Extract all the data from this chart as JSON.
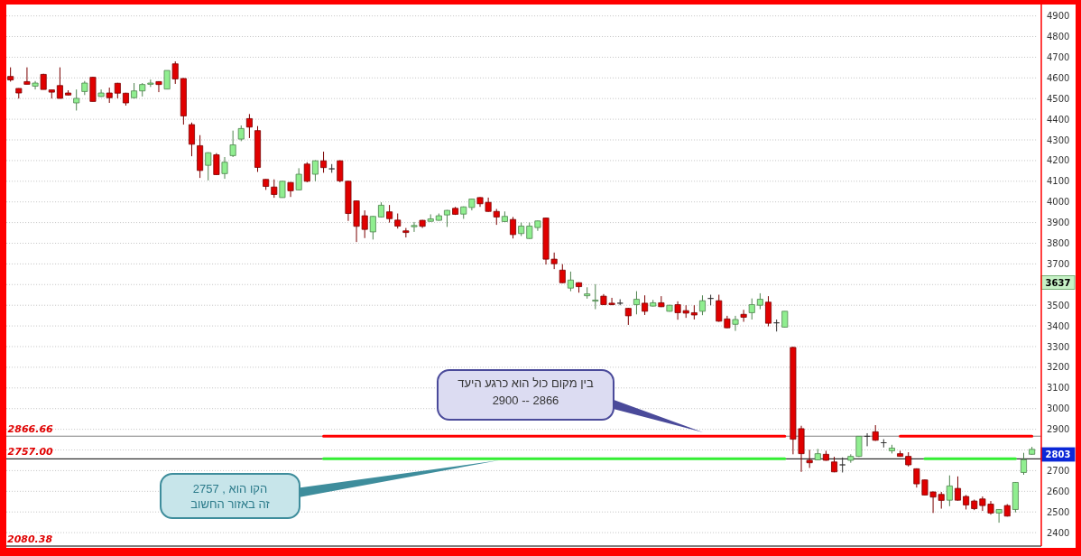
{
  "chart_data": {
    "type": "candlestick",
    "categories": [
      null,
      null,
      null,
      null,
      null,
      null,
      null,
      null,
      null,
      null,
      null,
      null,
      null,
      null,
      null,
      null,
      null,
      null,
      null,
      null,
      null,
      null,
      null,
      null,
      null,
      null,
      null,
      null,
      null,
      null,
      null,
      null,
      null,
      null,
      null,
      null,
      null,
      null,
      null,
      null,
      null,
      null,
      null,
      null,
      null,
      null,
      null,
      null,
      null,
      null,
      null,
      null,
      null,
      null,
      null,
      null,
      null,
      null,
      null,
      null,
      null,
      null,
      null,
      null,
      null,
      null,
      null,
      null,
      null,
      null,
      null,
      null,
      null,
      null,
      null,
      null,
      null,
      null,
      null,
      null,
      null,
      null,
      null,
      null,
      null,
      null,
      null,
      null,
      null,
      null,
      null,
      null,
      null,
      null,
      null,
      null,
      null,
      null,
      null,
      null,
      null,
      null,
      null,
      null,
      null,
      null,
      null,
      null,
      null,
      null,
      null,
      null,
      null,
      null,
      null,
      null,
      null,
      null,
      null,
      null,
      null,
      null,
      null,
      null,
      null
    ],
    "ohlc": [
      [
        4607,
        4651,
        4582,
        4590
      ],
      [
        4549,
        4550,
        4500,
        4527
      ],
      [
        4582,
        4651,
        4569,
        4569
      ],
      [
        4560,
        4585,
        4544,
        4575
      ],
      [
        4617,
        4620,
        4544,
        4544
      ],
      [
        4542,
        4542,
        4500,
        4531
      ],
      [
        4563,
        4651,
        4500,
        4501
      ],
      [
        4527,
        4540,
        4515,
        4517
      ],
      [
        4479,
        4544,
        4442,
        4501
      ],
      [
        4534,
        4585,
        4517,
        4575
      ],
      [
        4603,
        4605,
        4486,
        4486
      ],
      [
        4510,
        4544,
        4508,
        4527
      ],
      [
        4527,
        4553,
        4479,
        4504
      ],
      [
        4574,
        4576,
        4501,
        4526
      ],
      [
        4526,
        4528,
        4466,
        4479
      ],
      [
        4504,
        4575,
        4500,
        4537
      ],
      [
        4537,
        4575,
        4510,
        4568
      ],
      [
        4569,
        4592,
        4556,
        4575
      ],
      [
        4582,
        4584,
        4531,
        4568
      ],
      [
        4546,
        4636,
        4546,
        4636
      ],
      [
        4668,
        4680,
        4571,
        4595
      ],
      [
        4597,
        4599,
        4374,
        4416
      ],
      [
        4374,
        4384,
        4221,
        4279
      ],
      [
        4272,
        4323,
        4116,
        4152
      ],
      [
        4177,
        4240,
        4104,
        4238
      ],
      [
        4228,
        4236,
        4130,
        4132
      ],
      [
        4137,
        4217,
        4112,
        4192
      ],
      [
        4224,
        4345,
        4217,
        4276
      ],
      [
        4304,
        4370,
        4294,
        4355
      ],
      [
        4403,
        4425,
        4309,
        4362
      ],
      [
        4345,
        4367,
        4145,
        4167
      ],
      [
        4109,
        4110,
        4058,
        4075
      ],
      [
        4072,
        4109,
        4020,
        4036
      ],
      [
        4021,
        4102,
        4020,
        4100
      ],
      [
        4094,
        4096,
        4024,
        4054
      ],
      [
        4058,
        4163,
        4056,
        4134
      ],
      [
        4183,
        4192,
        4095,
        4100
      ],
      [
        4134,
        4201,
        4100,
        4199
      ],
      [
        4199,
        4243,
        4141,
        4166
      ],
      [
        4160,
        4183,
        4141,
        4160
      ],
      [
        4199,
        4201,
        4095,
        4102
      ],
      [
        4100,
        4102,
        3908,
        3944
      ],
      [
        4005,
        4007,
        3806,
        3882
      ],
      [
        3933,
        3959,
        3825,
        3867
      ],
      [
        3855,
        3932,
        3818,
        3930
      ],
      [
        3927,
        3998,
        3925,
        3984
      ],
      [
        3952,
        3985,
        3900,
        3919
      ],
      [
        3912,
        3944,
        3871,
        3883
      ],
      [
        3860,
        3874,
        3828,
        3852
      ],
      [
        3880,
        3903,
        3855,
        3886
      ],
      [
        3911,
        3913,
        3874,
        3882
      ],
      [
        3906,
        3940,
        3904,
        3918
      ],
      [
        3911,
        3944,
        3909,
        3933
      ],
      [
        3937,
        3961,
        3879,
        3959
      ],
      [
        3969,
        3976,
        3937,
        3940
      ],
      [
        3941,
        3978,
        3918,
        3976
      ],
      [
        3973,
        4016,
        3959,
        4014
      ],
      [
        4021,
        4023,
        3976,
        3991
      ],
      [
        3998,
        4021,
        3952,
        3954
      ],
      [
        3954,
        3966,
        3889,
        3927
      ],
      [
        3905,
        3954,
        3903,
        3930
      ],
      [
        3915,
        3927,
        3823,
        3842
      ],
      [
        3847,
        3900,
        3835,
        3883
      ],
      [
        3823,
        3900,
        3821,
        3883
      ],
      [
        3876,
        3910,
        3860,
        3908
      ],
      [
        3922,
        3924,
        3697,
        3723
      ],
      [
        3723,
        3755,
        3675,
        3701
      ],
      [
        3670,
        3699,
        3607,
        3609
      ],
      [
        3583,
        3663,
        3568,
        3622
      ],
      [
        3609,
        3611,
        3561,
        3590
      ],
      [
        3546,
        3587,
        3532,
        3555
      ],
      [
        3520,
        3602,
        3481,
        3525
      ],
      [
        3544,
        3554,
        3501,
        3503
      ],
      [
        3510,
        3536,
        3500,
        3503
      ],
      [
        3510,
        3529,
        3500,
        3510
      ],
      [
        3485,
        3487,
        3405,
        3449
      ],
      [
        3503,
        3568,
        3456,
        3529
      ],
      [
        3510,
        3548,
        3453,
        3471
      ],
      [
        3496,
        3526,
        3494,
        3512
      ],
      [
        3512,
        3544,
        3491,
        3493
      ],
      [
        3471,
        3502,
        3469,
        3500
      ],
      [
        3503,
        3519,
        3430,
        3464
      ],
      [
        3474,
        3500,
        3439,
        3462
      ],
      [
        3464,
        3500,
        3431,
        3453
      ],
      [
        3471,
        3548,
        3452,
        3522
      ],
      [
        3533,
        3551,
        3500,
        3533
      ],
      [
        3522,
        3551,
        3420,
        3423
      ],
      [
        3434,
        3449,
        3389,
        3391
      ],
      [
        3408,
        3449,
        3376,
        3431
      ],
      [
        3456,
        3478,
        3420,
        3442
      ],
      [
        3464,
        3533,
        3431,
        3503
      ],
      [
        3500,
        3558,
        3481,
        3529
      ],
      [
        3515,
        3544,
        3398,
        3413
      ],
      [
        3415,
        3431,
        3373,
        3415
      ],
      [
        3394,
        3471,
        3392,
        3471
      ],
      [
        3296,
        3300,
        2779,
        2852
      ],
      [
        2903,
        2917,
        2694,
        2782
      ],
      [
        2750,
        2801,
        2713,
        2738
      ],
      [
        2752,
        2805,
        2750,
        2782
      ],
      [
        2779,
        2796,
        2748,
        2750
      ],
      [
        2742,
        2767,
        2692,
        2694
      ],
      [
        2728,
        2764,
        2691,
        2728
      ],
      [
        2750,
        2779,
        2738,
        2769
      ],
      [
        2769,
        2866,
        2766,
        2866
      ],
      [
        2866,
        2881,
        2818,
        2866
      ],
      [
        2888,
        2920,
        2844,
        2847
      ],
      [
        2835,
        2852,
        2812,
        2835
      ],
      [
        2796,
        2825,
        2783,
        2809
      ],
      [
        2782,
        2796,
        2767,
        2769
      ],
      [
        2769,
        2789,
        2720,
        2728
      ],
      [
        2709,
        2711,
        2618,
        2636
      ],
      [
        2655,
        2657,
        2580,
        2582
      ],
      [
        2597,
        2599,
        2495,
        2572
      ],
      [
        2585,
        2597,
        2516,
        2556
      ],
      [
        2557,
        2677,
        2528,
        2626
      ],
      [
        2614,
        2672,
        2555,
        2557
      ],
      [
        2575,
        2582,
        2512,
        2534
      ],
      [
        2553,
        2560,
        2509,
        2516
      ],
      [
        2563,
        2575,
        2505,
        2531
      ],
      [
        2538,
        2553,
        2487,
        2495
      ],
      [
        2495,
        2514,
        2448,
        2512
      ],
      [
        2531,
        2538,
        2478,
        2480
      ],
      [
        2512,
        2645,
        2498,
        2643
      ],
      [
        2691,
        2786,
        2680,
        2753
      ],
      [
        2779,
        2815,
        2777,
        2803
      ]
    ],
    "colors": [
      "#e00000",
      "#e00000",
      "#e00000",
      "#90ee90",
      "#e00000",
      "#e00000",
      "#e00000",
      "#e00000",
      "#90ee90",
      "#90ee90",
      "#e00000",
      "#90ee90",
      "#e00000",
      "#e00000",
      "#e00000",
      "#90ee90",
      "#90ee90",
      "#90ee90",
      "#e00000",
      "#90ee90",
      "#e00000",
      "#e00000",
      "#e00000",
      "#e00000",
      "#90ee90",
      "#e00000",
      "#90ee90",
      "#90ee90",
      "#90ee90",
      "#e00000",
      "#e00000",
      "#e00000",
      "#e00000",
      "#90ee90",
      "#e00000",
      "#90ee90",
      "#e00000",
      "#90ee90",
      "#e00000",
      "#303030",
      "#e00000",
      "#e00000",
      "#e00000",
      "#e00000",
      "#90ee90",
      "#90ee90",
      "#e00000",
      "#e00000",
      "#e00000",
      "#90ee90",
      "#e00000",
      "#90ee90",
      "#90ee90",
      "#90ee90",
      "#e00000",
      "#90ee90",
      "#90ee90",
      "#e00000",
      "#e00000",
      "#e00000",
      "#90ee90",
      "#e00000",
      "#90ee90",
      "#90ee90",
      "#90ee90",
      "#e00000",
      "#e00000",
      "#e00000",
      "#90ee90",
      "#e00000",
      "#90ee90",
      "#90ee90",
      "#e00000",
      "#e00000",
      "#303030",
      "#e00000",
      "#90ee90",
      "#e00000",
      "#90ee90",
      "#e00000",
      "#90ee90",
      "#e00000",
      "#e00000",
      "#e00000",
      "#90ee90",
      "#303030",
      "#e00000",
      "#e00000",
      "#90ee90",
      "#e00000",
      "#90ee90",
      "#90ee90",
      "#e00000",
      "#303030",
      "#90ee90",
      "#e00000",
      "#e00000",
      "#e00000",
      "#90ee90",
      "#e00000",
      "#e00000",
      "#303030",
      "#90ee90",
      "#90ee90",
      "#303030",
      "#e00000",
      "#303030",
      "#90ee90",
      "#e00000",
      "#e00000",
      "#e00000",
      "#e00000",
      "#e00000",
      "#e00000",
      "#90ee90",
      "#e00000",
      "#e00000",
      "#e00000",
      "#e00000",
      "#e00000",
      "#90ee90",
      "#e00000",
      "#90ee90",
      "#90ee90",
      "#90ee90"
    ],
    "series": [
      {
        "type": "line",
        "color": "#ff0000",
        "values": [
          null,
          null,
          null,
          null,
          null,
          null,
          null,
          null,
          null,
          null,
          null,
          null,
          null,
          null,
          null,
          null,
          null,
          null,
          null,
          null,
          null,
          null,
          null,
          null,
          null,
          null,
          null,
          null,
          null,
          null,
          null,
          null,
          null,
          null,
          null,
          null,
          null,
          null,
          2867,
          2867,
          2867,
          2867,
          2867,
          2867,
          2867,
          2867,
          2867,
          2867,
          2867,
          2867,
          2867,
          2867,
          2867,
          2867,
          2867,
          2867,
          2867,
          2867,
          2867,
          2867,
          2867,
          2867,
          2867,
          2867,
          2867,
          2867,
          2867,
          2867,
          2867,
          2867,
          2867,
          2867,
          2867,
          2867,
          2867,
          2867,
          2867,
          2867,
          2867,
          2867,
          2867,
          2867,
          2867,
          2867,
          2867,
          2867,
          2867,
          2867,
          2867,
          2867,
          2867,
          2867,
          2867,
          2867,
          2867,
          null,
          null,
          null,
          null,
          null,
          null,
          null,
          null,
          null,
          null,
          null,
          null,
          null,
          2867,
          2867,
          2867,
          2867,
          2867,
          2867,
          2867,
          2867,
          2867,
          2867,
          2867,
          2867,
          2867,
          2867,
          2867,
          2867,
          2867
        ]
      },
      {
        "type": "line",
        "color": "#33ee33",
        "values": [
          null,
          null,
          null,
          null,
          null,
          null,
          null,
          null,
          null,
          null,
          null,
          null,
          null,
          null,
          null,
          null,
          null,
          null,
          null,
          null,
          null,
          null,
          null,
          null,
          null,
          null,
          null,
          null,
          null,
          null,
          null,
          null,
          null,
          null,
          null,
          null,
          null,
          null,
          2757,
          2757,
          2757,
          2757,
          2757,
          2757,
          2757,
          2757,
          2757,
          2757,
          2757,
          2757,
          2757,
          2757,
          2757,
          2757,
          2757,
          2757,
          2757,
          2757,
          2757,
          2757,
          2757,
          2757,
          2757,
          2757,
          2757,
          2757,
          2757,
          2757,
          2757,
          2757,
          2757,
          2757,
          2757,
          2757,
          2757,
          2757,
          2757,
          2757,
          2757,
          2757,
          2757,
          2757,
          2757,
          2757,
          2757,
          2757,
          2757,
          2757,
          2757,
          2757,
          2757,
          2757,
          2757,
          2757,
          2757,
          null,
          null,
          null,
          null,
          null,
          null,
          null,
          null,
          null,
          null,
          null,
          null,
          null,
          null,
          null,
          null,
          2757,
          2757,
          2757,
          2757,
          2757,
          2757,
          2757,
          2757,
          2757,
          2757,
          2757,
          2757,
          null,
          null
        ]
      }
    ],
    "ylim": [
      2335,
      4955
    ],
    "yticks": [
      2400,
      2500,
      2600,
      2700,
      {
        "value": 2800,
        "label": null
      },
      2900,
      3000,
      3100,
      3200,
      3300,
      3400,
      3500,
      {
        "value": 3600,
        "label": null
      },
      3700,
      3800,
      3900,
      4000,
      4100,
      4200,
      4300,
      4400,
      4500,
      4600,
      4700,
      4800,
      4900
    ],
    "tick_labels": "y",
    "grid": "y",
    "ref_lines": [
      {
        "axis": "y",
        "value": 2866.66,
        "label": "2866.66",
        "color": "#808080"
      },
      {
        "axis": "y",
        "value": 2757,
        "label": "2757.00",
        "color": "#000000"
      }
    ],
    "annotations": [
      "בין מקום כול הוא כרגע היעד",
      "2900 -- 2866",
      "הקו הוא , 2757",
      "זה באזור החשוב",
      "2080.38",
      "3637",
      "2803"
    ]
  }
}
